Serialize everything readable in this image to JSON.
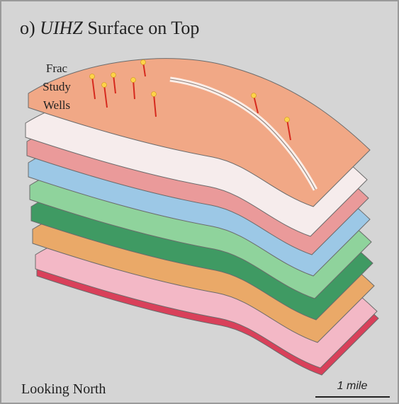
{
  "title": {
    "prefix": "o)",
    "emphasis": "UIHZ",
    "suffix": "Surface on Top"
  },
  "wells_label": [
    "Frac",
    "Study",
    "Wells"
  ],
  "view_label": "Looking North",
  "scale_label": "1 mile"
}
